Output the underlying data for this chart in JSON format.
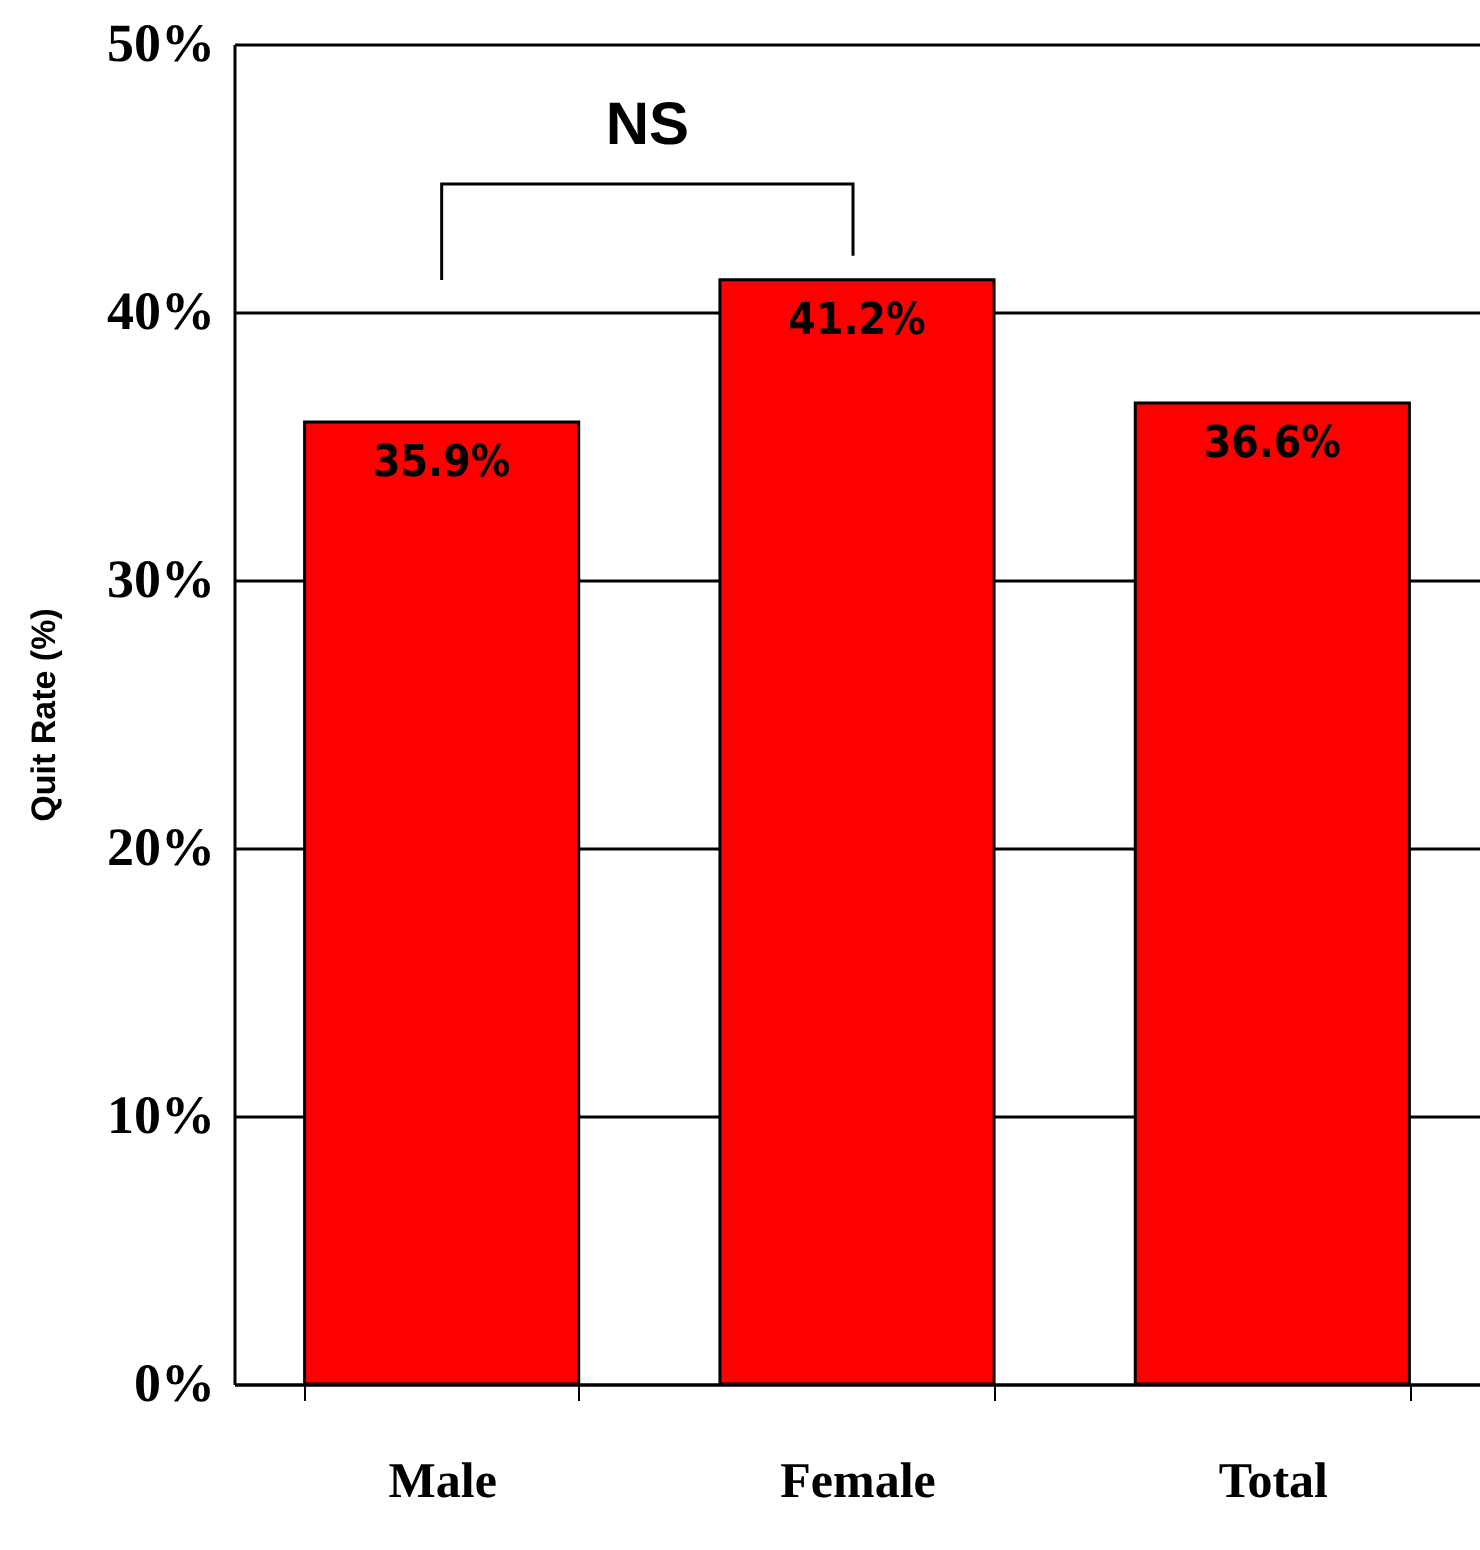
{
  "chart_data": {
    "type": "bar",
    "ylabel": "Quit Rate (%)",
    "categories": [
      "Male",
      "Female",
      "Total"
    ],
    "values": [
      35.9,
      41.2,
      36.6
    ],
    "color": "#ff0000",
    "value_labels": [
      "35.9%",
      "41.2%",
      "36.6%"
    ],
    "ylim": [
      0,
      50
    ],
    "yticks": [
      {
        "value": 0,
        "label": "0%"
      },
      {
        "value": 10,
        "label": "10%"
      },
      {
        "value": 20,
        "label": "20%"
      },
      {
        "value": 30,
        "label": "30%"
      },
      {
        "value": 40,
        "label": "40%"
      },
      {
        "value": 50,
        "label": "50%"
      }
    ],
    "grid": "y",
    "annotations": [
      "NS"
    ]
  }
}
